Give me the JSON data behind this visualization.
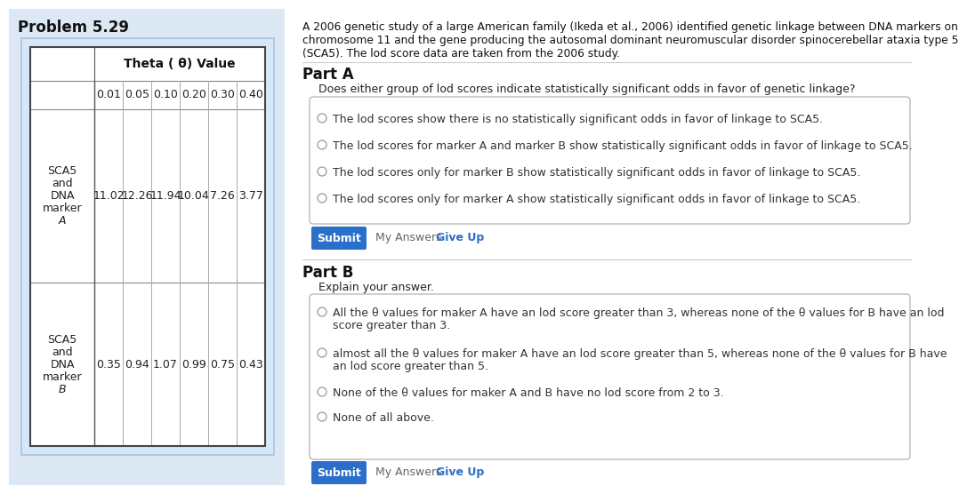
{
  "problem_title": "Problem 5.29",
  "left_bg": "#dce9f5",
  "table_border_outer": "#b0c4d8",
  "table_header": "Theta ( θ) Value",
  "theta_values": [
    "0.01",
    "0.05",
    "0.10",
    "0.20",
    "0.30",
    "0.40"
  ],
  "row1_label_lines": [
    "SCA5",
    "and",
    "DNA",
    "marker",
    "A"
  ],
  "row1_values": [
    "11.02",
    "12.26",
    "11.94",
    "10.04",
    "7.26",
    "3.77"
  ],
  "row2_label_lines": [
    "SCA5",
    "and",
    "DNA",
    "marker",
    "B"
  ],
  "row2_label_last_italic": true,
  "row2_values": [
    "0.35",
    "0.94",
    "1.07",
    "0.99",
    "0.75",
    "0.43"
  ],
  "intro_line1": "A 2006 genetic study of a large American family (Ikeda et al., 2006) identified genetic linkage between DNA markers on",
  "intro_line2": "chromosome 11 and the gene producing the autosomal dominant neuromuscular disorder spinocerebellar ataxia type 5",
  "intro_line3": "(SCA5). The lod score data are taken from the 2006 study.",
  "part_a_title": "Part A",
  "part_a_question": "Does either group of lod scores indicate statistically significant odds in favor of genetic linkage?",
  "part_a_options": [
    "The lod scores show there is no statistically significant odds in favor of linkage to SCA5.",
    "The lod scores for marker A and marker B show statistically significant odds in favor of linkage to SCA5.",
    "The lod scores only for marker B show statistically significant odds in favor of linkage to SCA5.",
    "The lod scores only for marker A show statistically significant odds in favor of linkage to SCA5."
  ],
  "part_b_title": "Part B",
  "part_b_question": "Explain your answer.",
  "part_b_options_line1": [
    "All the θ values for maker A have an lod score greater than 3, whereas none of the θ values for B have an lod",
    "almost all the θ values for maker A have an lod score greater than 5, whereas none of the θ values for B have",
    "None of the θ values for maker A and B have no lod score from 2 to 3.",
    "None of all above."
  ],
  "part_b_options_line2": [
    "score greater than 3.",
    "an lod score greater than 5.",
    "",
    ""
  ],
  "submit_color": "#2a6fc9",
  "submit_text": "Submit",
  "my_answers_text": "My Answers",
  "give_up_text": "Give Up",
  "give_up_color": "#2a6fc9",
  "separator_color": "#cccccc",
  "radio_color": "#aaaaaa",
  "option_text_color": "#333333",
  "box_border_color": "#aaaaaa"
}
